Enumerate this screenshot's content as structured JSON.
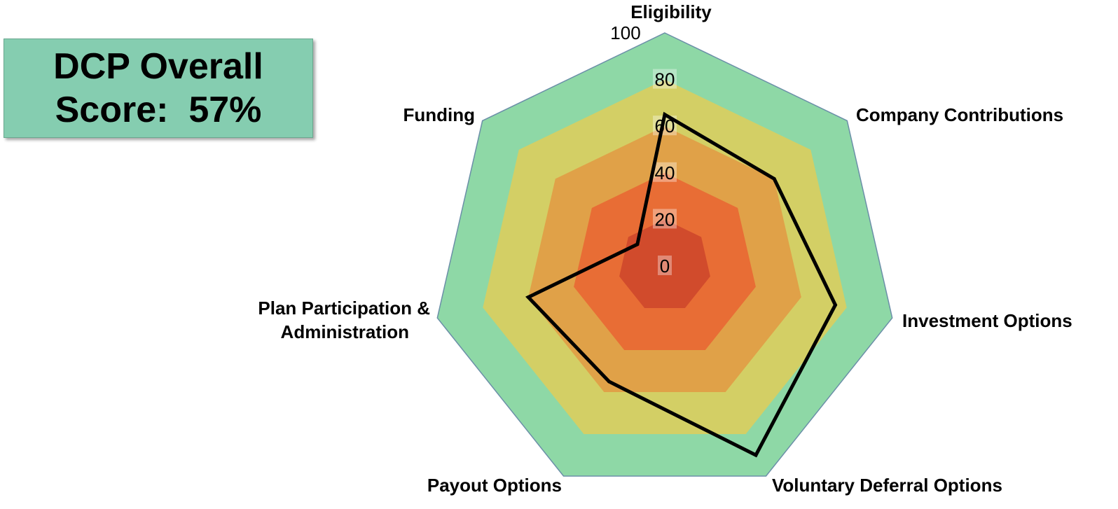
{
  "score_box": {
    "line1": "DCP Overall",
    "line2": "Score:  57%"
  },
  "chart_data": {
    "type": "radar",
    "categories": [
      "Eligibility",
      "Company Contributions",
      "Investment Options",
      "Voluntary Deferral Options",
      "Payout Options",
      "Plan Participation & Administration",
      "Funding"
    ],
    "values": [
      65,
      60,
      75,
      90,
      55,
      60,
      15
    ],
    "rlim": [
      0,
      100
    ],
    "ticks": [
      0,
      20,
      40,
      60,
      80,
      100
    ],
    "bands": [
      {
        "from": 0,
        "to": 20,
        "color": "#d14b2c"
      },
      {
        "from": 20,
        "to": 40,
        "color": "#e86d35"
      },
      {
        "from": 40,
        "to": 60,
        "color": "#e0a148"
      },
      {
        "from": 60,
        "to": 80,
        "color": "#d3cf65"
      },
      {
        "from": 80,
        "to": 100,
        "color": "#8ed8a6"
      }
    ],
    "series_color": "#000000",
    "outline_color": "#6b8fa8"
  }
}
